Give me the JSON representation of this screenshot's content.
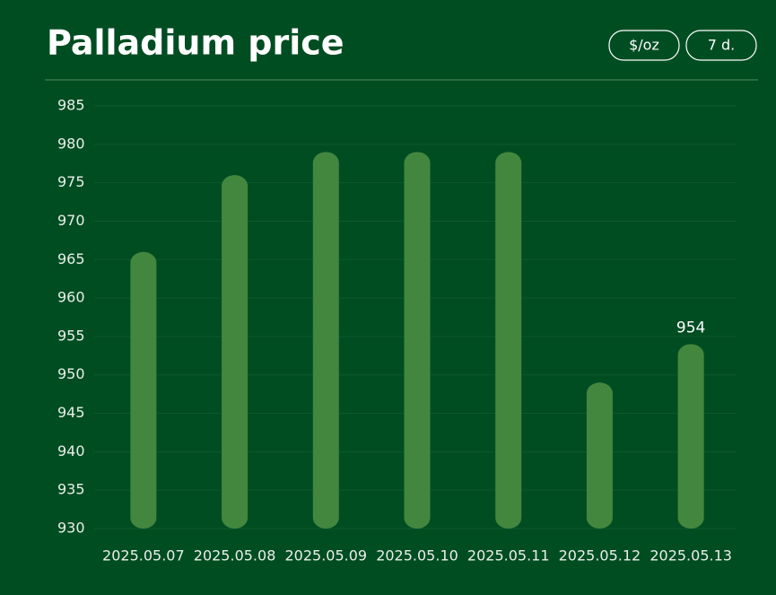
{
  "chart_data": {
    "type": "bar",
    "title": "Palladium price",
    "categories": [
      "2025.05.07",
      "2025.05.08",
      "2025.05.09",
      "2025.05.10",
      "2025.05.11",
      "2025.05.12",
      "2025.05.13"
    ],
    "values": [
      966,
      976,
      979,
      979,
      979,
      949,
      954
    ],
    "color": "#43873f",
    "ylim": [
      930,
      985
    ],
    "yticks": [
      930,
      935,
      940,
      945,
      950,
      955,
      960,
      965,
      970,
      975,
      980,
      985
    ],
    "grid": true,
    "data_label": "last"
  },
  "controls": [
    "$/oz",
    "7 d."
  ]
}
